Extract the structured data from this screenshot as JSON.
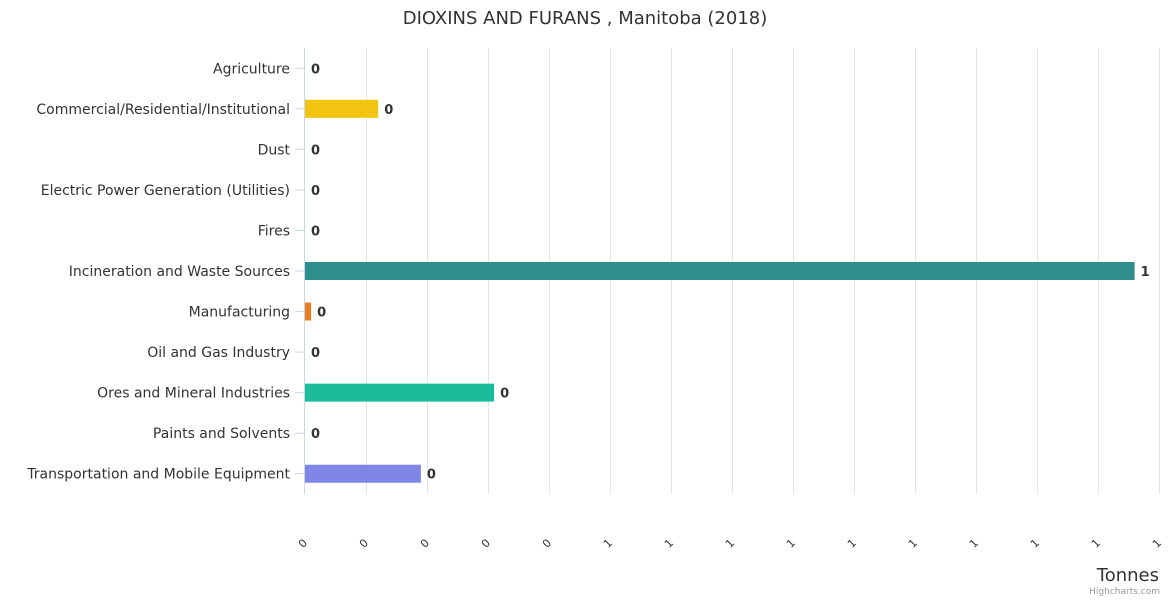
{
  "chart_data": {
    "type": "bar",
    "orientation": "horizontal",
    "title": "DIOXINS AND FURANS , Manitoba (2018)",
    "xlabel": "Tonnes",
    "categories": [
      "Agriculture",
      "Commercial/Residential/Institutional",
      "Dust",
      "Electric Power Generation (Utilities)",
      "Fires",
      "Incineration and Waste Sources",
      "Manufacturing",
      "Oil and Gas Industry",
      "Ores and Mineral Industries",
      "Paints and Solvents",
      "Transportation and Mobile Equipment"
    ],
    "values": [
      0,
      0.12,
      0,
      0,
      0,
      1.36,
      0.01,
      0,
      0.31,
      0,
      0.19
    ],
    "data_labels": [
      "0",
      "0",
      "0",
      "0",
      "0",
      "1",
      "0",
      "0",
      "0",
      "0",
      "0"
    ],
    "colors": [
      "#4a6cd4",
      "#f1c40f",
      "#2c3e50",
      "#8e44ad",
      "#c0392b",
      "#2e8e8c",
      "#e67e22",
      "#7f8c8d",
      "#1abc9c",
      "#95a5a6",
      "#7f86e6"
    ],
    "xlim": [
      0,
      1.4
    ],
    "x_ticks": [
      0,
      0.1,
      0.2,
      0.3,
      0.4,
      0.5,
      0.6,
      0.7,
      0.8,
      0.9,
      1.0,
      1.1,
      1.2,
      1.3,
      1.4
    ],
    "x_tick_labels": [
      "0",
      "0",
      "0",
      "0",
      "0",
      "1",
      "1",
      "1",
      "1",
      "1",
      "1",
      "1",
      "1",
      "1",
      "1"
    ],
    "grid": true,
    "legend": "none",
    "credits": "Highcharts.com"
  }
}
